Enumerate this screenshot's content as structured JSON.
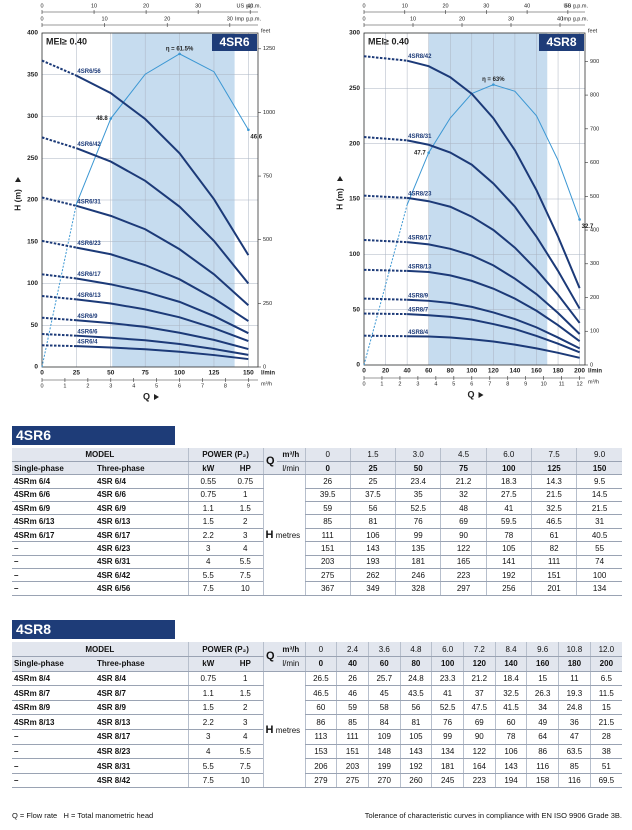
{
  "chart_data": [
    {
      "type": "line",
      "title": "4SR6",
      "mei": "MEI≥ 0.40",
      "ylabel": "H (m)",
      "xlabel": "Q",
      "x_unit": "l/min",
      "y2_unit": "feet",
      "x": [
        0,
        25,
        50,
        75,
        100,
        125,
        150
      ],
      "xlim": [
        0,
        157
      ],
      "xticks": [
        0,
        25,
        50,
        75,
        100,
        125,
        150
      ],
      "ylim": [
        0,
        400
      ],
      "yticks": [
        0,
        50,
        100,
        150,
        200,
        250,
        300,
        350,
        400
      ],
      "y2lim": [
        0,
        1312
      ],
      "y2ticks": [
        0,
        250,
        500,
        750,
        1000,
        1250
      ],
      "top_axes": [
        {
          "unit": "US g.p.m.",
          "lim": [
            0,
            41.5
          ],
          "ticks": [
            0,
            10,
            20,
            30,
            40
          ]
        },
        {
          "unit": "Imp g.p.m.",
          "lim": [
            0,
            34.5
          ],
          "ticks": [
            0,
            10,
            20,
            30
          ]
        }
      ],
      "bottom_axis2": {
        "unit": "m³/h",
        "lim": [
          0,
          9.42
        ],
        "ticks": [
          0,
          1,
          2,
          3,
          4,
          5,
          6,
          7,
          8,
          9
        ]
      },
      "shaded_range": [
        51,
        140
      ],
      "color": "#1c3a78",
      "grid": true,
      "series": [
        {
          "name": "4SR6/4",
          "values": [
            26,
            25,
            23.4,
            21.2,
            18.3,
            14.3,
            9.5
          ]
        },
        {
          "name": "4SR6/6",
          "values": [
            39.5,
            37.5,
            35,
            32,
            27.5,
            21.5,
            14.5
          ]
        },
        {
          "name": "4SR6/9",
          "values": [
            59,
            56,
            52.5,
            48,
            41,
            32.5,
            21.5
          ]
        },
        {
          "name": "4SR6/13",
          "values": [
            85,
            81,
            76,
            69,
            59.5,
            46.5,
            31
          ]
        },
        {
          "name": "4SR6/17",
          "values": [
            111,
            106,
            99,
            90,
            78,
            61,
            40.5
          ]
        },
        {
          "name": "4SR6/23",
          "values": [
            151,
            143,
            135,
            122,
            105,
            82,
            55
          ]
        },
        {
          "name": "4SR6/31",
          "values": [
            203,
            193,
            181,
            165,
            141,
            111,
            74
          ]
        },
        {
          "name": "4SR6/42",
          "values": [
            275,
            262,
            246,
            223,
            192,
            151,
            100
          ]
        },
        {
          "name": "4SR6/56",
          "values": [
            367,
            349,
            328,
            297,
            256,
            201,
            134
          ]
        }
      ],
      "efficiency": {
        "color": "#3b97d3",
        "lim": [
          0,
          65.6
        ],
        "x": [
          0,
          25,
          50,
          75,
          100,
          125,
          150
        ],
        "values": [
          0,
          32,
          48.8,
          57.5,
          61.5,
          58,
          46.6
        ],
        "value_labels": [
          null,
          null,
          "48.8",
          null,
          "η = 61.5%",
          null,
          "46.6"
        ]
      }
    },
    {
      "type": "line",
      "title": "4SR8",
      "mei": "MEI≥ 0.40",
      "ylabel": "H (m)",
      "xlabel": "Q",
      "x_unit": "l/min",
      "y2_unit": "feet",
      "x": [
        0,
        40,
        60,
        80,
        100,
        120,
        140,
        160,
        180,
        200
      ],
      "xlim": [
        0,
        205
      ],
      "xticks": [
        0,
        20,
        40,
        60,
        80,
        100,
        120,
        140,
        160,
        180,
        200
      ],
      "ylim": [
        0,
        300
      ],
      "yticks": [
        0,
        50,
        100,
        150,
        200,
        250,
        300
      ],
      "y2lim": [
        0,
        984
      ],
      "y2ticks": [
        0,
        100,
        200,
        300,
        400,
        500,
        600,
        700,
        800,
        900
      ],
      "top_axes": [
        {
          "unit": "US g.p.m.",
          "lim": [
            0,
            54.2
          ],
          "ticks": [
            0,
            10,
            20,
            30,
            40,
            50
          ]
        },
        {
          "unit": "Imp g.p.m.",
          "lim": [
            0,
            45.1
          ],
          "ticks": [
            0,
            10,
            20,
            30,
            40
          ]
        }
      ],
      "bottom_axis2": {
        "unit": "m³/h",
        "lim": [
          0,
          12.3
        ],
        "ticks": [
          0,
          1,
          2,
          3,
          4,
          5,
          6,
          7,
          8,
          9,
          10,
          11,
          12
        ]
      },
      "shaded_range": [
        60,
        170
      ],
      "color": "#1c3a78",
      "grid": true,
      "series": [
        {
          "name": "4SR8/4",
          "values": [
            26.5,
            26,
            25.7,
            24.8,
            23.3,
            21.2,
            18.4,
            15,
            11,
            6.5
          ]
        },
        {
          "name": "4SR8/7",
          "values": [
            46.5,
            46,
            45,
            43.5,
            41,
            37,
            32.5,
            26.3,
            19.3,
            11.5
          ]
        },
        {
          "name": "4SR8/9",
          "values": [
            60,
            59,
            58,
            56,
            52.5,
            47.5,
            41.5,
            34,
            24.8,
            15
          ]
        },
        {
          "name": "4SR8/13",
          "values": [
            86,
            85,
            84,
            81,
            76,
            69,
            60,
            49,
            36,
            21.5
          ]
        },
        {
          "name": "4SR8/17",
          "values": [
            113,
            111,
            109,
            105,
            99,
            90,
            78,
            64,
            47,
            28
          ]
        },
        {
          "name": "4SR8/23",
          "values": [
            153,
            151,
            148,
            143,
            134,
            122,
            106,
            86,
            63.5,
            38
          ]
        },
        {
          "name": "4SR8/31",
          "values": [
            206,
            203,
            199,
            192,
            181,
            164,
            143,
            116,
            85,
            51
          ]
        },
        {
          "name": "4SR8/42",
          "values": [
            279,
            275,
            270,
            260,
            245,
            223,
            194,
            158,
            116,
            69.5
          ]
        }
      ],
      "efficiency": {
        "color": "#3b97d3",
        "lim": [
          0,
          74.6
        ],
        "x": [
          0,
          40,
          60,
          80,
          100,
          120,
          140,
          160,
          180,
          200
        ],
        "values": [
          0,
          36,
          47.7,
          55.5,
          61,
          63,
          61.5,
          56,
          46,
          32.7
        ],
        "value_labels": [
          null,
          null,
          "47.7",
          null,
          null,
          "η = 63%",
          null,
          null,
          null,
          "32.7"
        ]
      }
    }
  ],
  "tables": [
    {
      "title": "4SR6",
      "model": "MODEL",
      "power": "POWER (P₂)",
      "single_phase": "Single-phase",
      "three_phase": "Three-phase",
      "kw": "kW",
      "hp": "HP",
      "q_label": "Q",
      "q_unit_m3h": "m³/h",
      "q_unit_lmin": "l/min",
      "h_label": "H",
      "h_unit": "metres",
      "q_m3h": [
        "0",
        "1.5",
        "3.0",
        "4.5",
        "6.0",
        "7.5",
        "9.0"
      ],
      "q_lmin": [
        "0",
        "25",
        "50",
        "75",
        "100",
        "125",
        "150"
      ],
      "rows": [
        {
          "single": "4SRm 6/4",
          "three": "4SR 6/4",
          "kw": "0.55",
          "hp": "0.75",
          "h": [
            "26",
            "25",
            "23.4",
            "21.2",
            "18.3",
            "14.3",
            "9.5"
          ]
        },
        {
          "single": "4SRm 6/6",
          "three": "4SR 6/6",
          "kw": "0.75",
          "hp": "1",
          "h": [
            "39.5",
            "37.5",
            "35",
            "32",
            "27.5",
            "21.5",
            "14.5"
          ]
        },
        {
          "single": "4SRm 6/9",
          "three": "4SR 6/9",
          "kw": "1.1",
          "hp": "1.5",
          "h": [
            "59",
            "56",
            "52.5",
            "48",
            "41",
            "32.5",
            "21.5"
          ]
        },
        {
          "single": "4SRm 6/13",
          "three": "4SR 6/13",
          "kw": "1.5",
          "hp": "2",
          "h": [
            "85",
            "81",
            "76",
            "69",
            "59.5",
            "46.5",
            "31"
          ]
        },
        {
          "single": "4SRm 6/17",
          "three": "4SR 6/17",
          "kw": "2.2",
          "hp": "3",
          "h": [
            "111",
            "106",
            "99",
            "90",
            "78",
            "61",
            "40.5"
          ]
        },
        {
          "single": "–",
          "three": "4SR 6/23",
          "kw": "3",
          "hp": "4",
          "h": [
            "151",
            "143",
            "135",
            "122",
            "105",
            "82",
            "55"
          ]
        },
        {
          "single": "–",
          "three": "4SR 6/31",
          "kw": "4",
          "hp": "5.5",
          "h": [
            "203",
            "193",
            "181",
            "165",
            "141",
            "111",
            "74"
          ]
        },
        {
          "single": "–",
          "three": "4SR 6/42",
          "kw": "5.5",
          "hp": "7.5",
          "h": [
            "275",
            "262",
            "246",
            "223",
            "192",
            "151",
            "100"
          ]
        },
        {
          "single": "–",
          "three": "4SR 6/56",
          "kw": "7.5",
          "hp": "10",
          "h": [
            "367",
            "349",
            "328",
            "297",
            "256",
            "201",
            "134"
          ]
        }
      ]
    },
    {
      "title": "4SR8",
      "model": "MODEL",
      "power": "POWER (P₂)",
      "single_phase": "Single-phase",
      "three_phase": "Three-phase",
      "kw": "kW",
      "hp": "HP",
      "q_label": "Q",
      "q_unit_m3h": "m³/h",
      "q_unit_lmin": "l/min",
      "h_label": "H",
      "h_unit": "metres",
      "q_m3h": [
        "0",
        "2.4",
        "3.6",
        "4.8",
        "6.0",
        "7.2",
        "8.4",
        "9.6",
        "10.8",
        "12.0"
      ],
      "q_lmin": [
        "0",
        "40",
        "60",
        "80",
        "100",
        "120",
        "140",
        "160",
        "180",
        "200"
      ],
      "rows": [
        {
          "single": "4SRm 8/4",
          "three": "4SR 8/4",
          "kw": "0.75",
          "hp": "1",
          "h": [
            "26.5",
            "26",
            "25.7",
            "24.8",
            "23.3",
            "21.2",
            "18.4",
            "15",
            "11",
            "6.5"
          ]
        },
        {
          "single": "4SRm 8/7",
          "three": "4SR 8/7",
          "kw": "1.1",
          "hp": "1.5",
          "h": [
            "46.5",
            "46",
            "45",
            "43.5",
            "41",
            "37",
            "32.5",
            "26.3",
            "19.3",
            "11.5"
          ]
        },
        {
          "single": "4SRm 8/9",
          "three": "4SR 8/9",
          "kw": "1.5",
          "hp": "2",
          "h": [
            "60",
            "59",
            "58",
            "56",
            "52.5",
            "47.5",
            "41.5",
            "34",
            "24.8",
            "15"
          ]
        },
        {
          "single": "4SRm 8/13",
          "three": "4SR 8/13",
          "kw": "2.2",
          "hp": "3",
          "h": [
            "86",
            "85",
            "84",
            "81",
            "76",
            "69",
            "60",
            "49",
            "36",
            "21.5"
          ]
        },
        {
          "single": "–",
          "three": "4SR 8/17",
          "kw": "3",
          "hp": "4",
          "h": [
            "113",
            "111",
            "109",
            "105",
            "99",
            "90",
            "78",
            "64",
            "47",
            "28"
          ]
        },
        {
          "single": "–",
          "three": "4SR 8/23",
          "kw": "4",
          "hp": "5.5",
          "h": [
            "153",
            "151",
            "148",
            "143",
            "134",
            "122",
            "106",
            "86",
            "63.5",
            "38"
          ]
        },
        {
          "single": "–",
          "three": "4SR 8/31",
          "kw": "5.5",
          "hp": "7.5",
          "h": [
            "206",
            "203",
            "199",
            "192",
            "181",
            "164",
            "143",
            "116",
            "85",
            "51"
          ]
        },
        {
          "single": "–",
          "three": "4SR 8/42",
          "kw": "7.5",
          "hp": "10",
          "h": [
            "279",
            "275",
            "270",
            "260",
            "245",
            "223",
            "194",
            "158",
            "116",
            "69.5"
          ]
        }
      ]
    }
  ],
  "footer": {
    "legend_q": "Q = Flow rate",
    "legend_h": "H = Total manometric head",
    "note": "Tolerance of characteristic curves in compliance with EN ISO 9906 Grade 3B."
  }
}
